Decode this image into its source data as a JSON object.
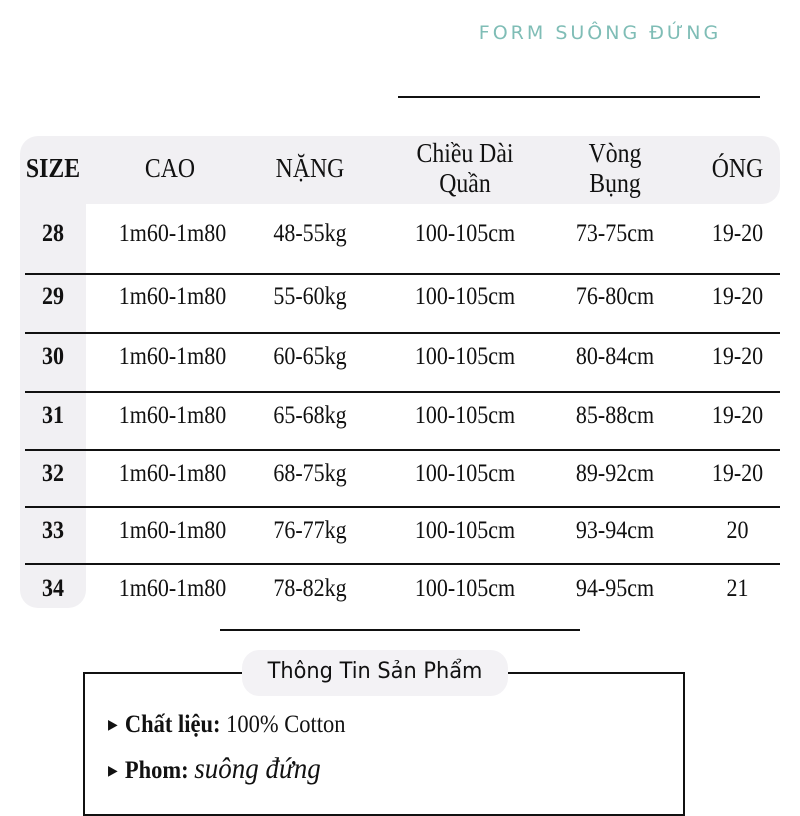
{
  "brand": "FORM SUÔNG ĐỨNG",
  "table": {
    "headers": [
      "SIZE",
      "CAO",
      "NẶNG",
      "Chiều Dài",
      "Quần",
      "Vòng",
      "Bụng",
      "ÓNG"
    ],
    "rows": [
      [
        "28",
        "1m60-1m80",
        "48-55kg",
        "100-105cm",
        "73-75cm",
        "19-20"
      ],
      [
        "29",
        "1m60-1m80",
        "55-60kg",
        "100-105cm",
        "76-80cm",
        "19-20"
      ],
      [
        "30",
        "1m60-1m80",
        "60-65kg",
        "100-105cm",
        "80-84cm",
        "19-20"
      ],
      [
        "31",
        "1m60-1m80",
        "65-68kg",
        "100-105cm",
        "85-88cm",
        "19-20"
      ],
      [
        "32",
        "1m60-1m80",
        "68-75kg",
        "100-105cm",
        "89-92cm",
        "19-20"
      ],
      [
        "33",
        "1m60-1m80",
        "76-77kg",
        "100-105cm",
        "93-94cm",
        "20"
      ],
      [
        "34",
        "1m60-1m80",
        "78-82kg",
        "100-105cm",
        "94-95cm",
        "21"
      ]
    ]
  },
  "info": {
    "title": "Thông Tin Sản Phẩm",
    "material_label": "Chất liệu:",
    "material_value": "100% Cotton",
    "form_label": "Phom:",
    "form_value": "suông đứng"
  },
  "colors": {
    "brand": "#7fbdb6",
    "header_bg": "#f1f0f3"
  }
}
